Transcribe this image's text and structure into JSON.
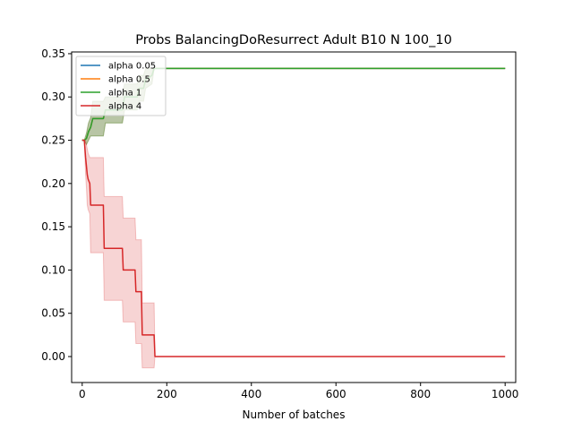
{
  "chart_data": {
    "type": "line",
    "title": "Probs BalancingDoResurrect Adult B10 N 100_10",
    "xlabel": "Number of batches",
    "ylabel": "",
    "xlim": [
      -25,
      1025
    ],
    "ylim": [
      -0.03,
      0.352
    ],
    "xticks": [
      0,
      200,
      400,
      600,
      800,
      1000
    ],
    "yticks": [
      0.0,
      0.05,
      0.1,
      0.15,
      0.2,
      0.25,
      0.3,
      0.35
    ],
    "ytick_labels": [
      "0.00",
      "0.05",
      "0.10",
      "0.15",
      "0.20",
      "0.25",
      "0.30",
      "0.35"
    ],
    "legend_position": "top-left",
    "series": [
      {
        "name": "alpha 0.05",
        "color": "#1f77b4",
        "points": [
          [
            0,
            0.25
          ],
          [
            5,
            0.25
          ],
          [
            10,
            0.252
          ],
          [
            15,
            0.26
          ],
          [
            20,
            0.265
          ],
          [
            25,
            0.275
          ],
          [
            50,
            0.275
          ],
          [
            55,
            0.285
          ],
          [
            95,
            0.285
          ],
          [
            100,
            0.3
          ],
          [
            130,
            0.3
          ],
          [
            135,
            0.31
          ],
          [
            145,
            0.31
          ],
          [
            150,
            0.32
          ],
          [
            165,
            0.325
          ],
          [
            170,
            0.333
          ],
          [
            1000,
            0.333
          ]
        ],
        "band": [
          [
            0,
            0.25,
            0.25
          ],
          [
            5,
            0.25,
            0.25
          ],
          [
            10,
            0.245,
            0.258
          ],
          [
            15,
            0.25,
            0.27
          ],
          [
            20,
            0.255,
            0.276
          ],
          [
            25,
            0.255,
            0.295
          ],
          [
            50,
            0.255,
            0.295
          ],
          [
            55,
            0.27,
            0.3
          ],
          [
            95,
            0.27,
            0.3
          ],
          [
            100,
            0.285,
            0.315
          ],
          [
            130,
            0.285,
            0.315
          ],
          [
            135,
            0.295,
            0.325
          ],
          [
            145,
            0.295,
            0.325
          ],
          [
            150,
            0.31,
            0.333
          ],
          [
            165,
            0.315,
            0.333
          ],
          [
            170,
            0.333,
            0.333
          ],
          [
            1000,
            0.333,
            0.333
          ]
        ]
      },
      {
        "name": "alpha 0.5",
        "color": "#ff7f0e",
        "points": [
          [
            0,
            0.25
          ],
          [
            5,
            0.25
          ],
          [
            10,
            0.252
          ],
          [
            15,
            0.26
          ],
          [
            20,
            0.265
          ],
          [
            25,
            0.275
          ],
          [
            50,
            0.275
          ],
          [
            55,
            0.285
          ],
          [
            95,
            0.285
          ],
          [
            100,
            0.3
          ],
          [
            130,
            0.3
          ],
          [
            135,
            0.31
          ],
          [
            145,
            0.31
          ],
          [
            150,
            0.32
          ],
          [
            165,
            0.325
          ],
          [
            170,
            0.333
          ],
          [
            1000,
            0.333
          ]
        ],
        "band": [
          [
            0,
            0.25,
            0.25
          ],
          [
            5,
            0.25,
            0.25
          ],
          [
            10,
            0.245,
            0.258
          ],
          [
            15,
            0.25,
            0.27
          ],
          [
            20,
            0.255,
            0.276
          ],
          [
            25,
            0.255,
            0.295
          ],
          [
            50,
            0.255,
            0.295
          ],
          [
            55,
            0.27,
            0.3
          ],
          [
            95,
            0.27,
            0.3
          ],
          [
            100,
            0.285,
            0.315
          ],
          [
            130,
            0.285,
            0.315
          ],
          [
            135,
            0.295,
            0.325
          ],
          [
            145,
            0.295,
            0.325
          ],
          [
            150,
            0.31,
            0.333
          ],
          [
            165,
            0.315,
            0.333
          ],
          [
            170,
            0.333,
            0.333
          ],
          [
            1000,
            0.333,
            0.333
          ]
        ]
      },
      {
        "name": "alpha 1",
        "color": "#2ca02c",
        "points": [
          [
            0,
            0.25
          ],
          [
            5,
            0.25
          ],
          [
            10,
            0.252
          ],
          [
            15,
            0.26
          ],
          [
            20,
            0.265
          ],
          [
            25,
            0.275
          ],
          [
            50,
            0.275
          ],
          [
            55,
            0.285
          ],
          [
            95,
            0.285
          ],
          [
            100,
            0.3
          ],
          [
            130,
            0.3
          ],
          [
            135,
            0.31
          ],
          [
            145,
            0.31
          ],
          [
            150,
            0.32
          ],
          [
            165,
            0.325
          ],
          [
            170,
            0.333
          ],
          [
            1000,
            0.333
          ]
        ],
        "band": [
          [
            0,
            0.25,
            0.25
          ],
          [
            5,
            0.25,
            0.25
          ],
          [
            10,
            0.245,
            0.258
          ],
          [
            15,
            0.25,
            0.27
          ],
          [
            20,
            0.255,
            0.276
          ],
          [
            25,
            0.255,
            0.295
          ],
          [
            50,
            0.255,
            0.295
          ],
          [
            55,
            0.27,
            0.3
          ],
          [
            95,
            0.27,
            0.3
          ],
          [
            100,
            0.285,
            0.315
          ],
          [
            130,
            0.285,
            0.315
          ],
          [
            135,
            0.295,
            0.325
          ],
          [
            145,
            0.295,
            0.325
          ],
          [
            150,
            0.31,
            0.333
          ],
          [
            165,
            0.315,
            0.333
          ],
          [
            170,
            0.333,
            0.333
          ],
          [
            1000,
            0.333,
            0.333
          ]
        ]
      },
      {
        "name": "alpha 4",
        "color": "#d62728",
        "points": [
          [
            0,
            0.25
          ],
          [
            5,
            0.25
          ],
          [
            8,
            0.23
          ],
          [
            10,
            0.22
          ],
          [
            12,
            0.21
          ],
          [
            14,
            0.205
          ],
          [
            18,
            0.2
          ],
          [
            20,
            0.175
          ],
          [
            50,
            0.175
          ],
          [
            52,
            0.125
          ],
          [
            95,
            0.125
          ],
          [
            97,
            0.1
          ],
          [
            125,
            0.1
          ],
          [
            127,
            0.075
          ],
          [
            140,
            0.075
          ],
          [
            142,
            0.025
          ],
          [
            170,
            0.025
          ],
          [
            172,
            0.0
          ],
          [
            1000,
            0.0
          ]
        ],
        "band": [
          [
            0,
            0.25,
            0.25
          ],
          [
            5,
            0.25,
            0.25
          ],
          [
            8,
            0.21,
            0.25
          ],
          [
            10,
            0.195,
            0.245
          ],
          [
            12,
            0.175,
            0.24
          ],
          [
            14,
            0.17,
            0.235
          ],
          [
            18,
            0.165,
            0.23
          ],
          [
            20,
            0.12,
            0.23
          ],
          [
            50,
            0.12,
            0.23
          ],
          [
            52,
            0.065,
            0.185
          ],
          [
            95,
            0.065,
            0.185
          ],
          [
            97,
            0.04,
            0.16
          ],
          [
            125,
            0.04,
            0.16
          ],
          [
            127,
            0.015,
            0.135
          ],
          [
            140,
            0.015,
            0.135
          ],
          [
            142,
            -0.013,
            0.062
          ],
          [
            170,
            -0.013,
            0.062
          ],
          [
            172,
            0.0,
            0.0
          ],
          [
            1000,
            0.0,
            0.0
          ]
        ]
      }
    ]
  }
}
